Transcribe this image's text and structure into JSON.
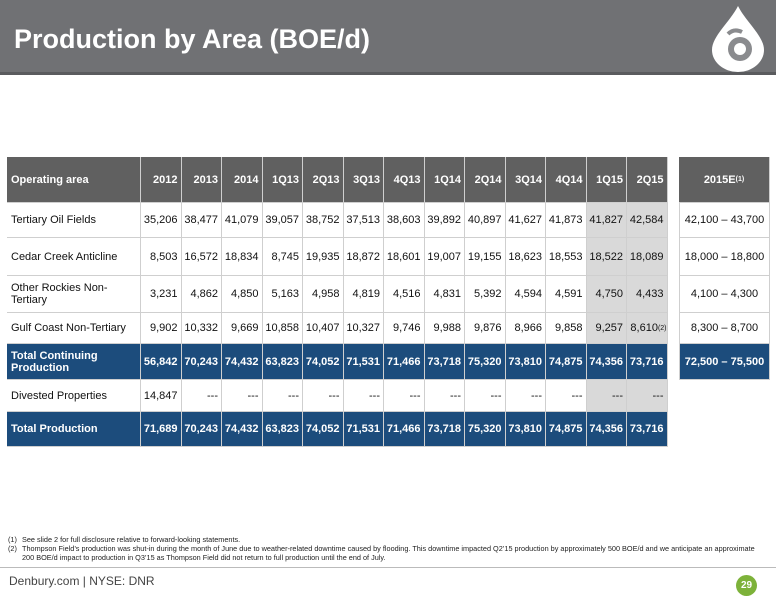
{
  "header": {
    "title": "Production by Area (BOE/d)"
  },
  "table": {
    "columns": [
      "Operating area",
      "2012",
      "2013",
      "2014",
      "1Q13",
      "2Q13",
      "3Q13",
      "4Q13",
      "1Q14",
      "2Q14",
      "3Q14",
      "4Q14",
      "1Q15",
      "2Q15"
    ],
    "estimate_header": {
      "label": "2015E",
      "note": "(1)"
    },
    "rows": [
      {
        "area": "Tertiary Oil Fields",
        "values": [
          "35,206",
          "38,477",
          "41,079",
          "39,057",
          "38,752",
          "37,513",
          "38,603",
          "39,892",
          "40,897",
          "41,627",
          "41,873",
          "41,827",
          "42,584"
        ],
        "estimate": "42,100 – 43,700"
      },
      {
        "area": "Cedar Creek Anticline",
        "values": [
          "8,503",
          "16,572",
          "18,834",
          "8,745",
          "19,935",
          "18,872",
          "18,601",
          "19,007",
          "19,155",
          "18,623",
          "18,553",
          "18,522",
          "18,089"
        ],
        "estimate": "18,000 – 18,800"
      },
      {
        "area": "Other Rockies Non-Tertiary",
        "values": [
          "3,231",
          "4,862",
          "4,850",
          "5,163",
          "4,958",
          "4,819",
          "4,516",
          "4,831",
          "5,392",
          "4,594",
          "4,591",
          "4,750",
          "4,433"
        ],
        "estimate": "4,100 – 4,300"
      },
      {
        "area": "Gulf Coast Non-Tertiary",
        "values": [
          "9,902",
          "10,332",
          "9,669",
          "10,858",
          "10,407",
          "10,327",
          "9,746",
          "9,988",
          "9,876",
          "8,966",
          "9,858",
          "9,257",
          "8,610"
        ],
        "last_note": "(2)",
        "estimate": "8,300 – 8,700"
      },
      {
        "area": "Total Continuing Production",
        "values": [
          "56,842",
          "70,243",
          "74,432",
          "63,823",
          "74,052",
          "71,531",
          "71,466",
          "73,718",
          "75,320",
          "73,810",
          "74,875",
          "74,356",
          "73,716"
        ],
        "estimate": "72,500 – 75,500",
        "total": true
      },
      {
        "area": "Divested Properties",
        "values": [
          "14,847",
          "---",
          "---",
          "---",
          "---",
          "---",
          "---",
          "---",
          "---",
          "---",
          "---",
          "---",
          "---"
        ]
      },
      {
        "area": "Total Production",
        "values": [
          "71,689",
          "70,243",
          "74,432",
          "63,823",
          "74,052",
          "71,531",
          "71,466",
          "73,718",
          "75,320",
          "73,810",
          "74,875",
          "74,356",
          "73,716"
        ],
        "total": true
      }
    ]
  },
  "footnotes": [
    {
      "number": "(1)",
      "text": "See slide 2 for full disclosure relative to forward-looking statements."
    },
    {
      "number": "(2)",
      "text": "Thompson Field’s production was shut-in during the month of June due to weather-related downtime caused by flooding.  This downtime impacted Q2’15 production by approximately 500 BOE/d and we anticipate an approximate 200 BOE/d impact to production in Q3’15 as Thompson Field did not return to full production until the end of July."
    }
  ],
  "footer": {
    "brand": "Denbury.com | NYSE: DNR",
    "page": "29"
  }
}
